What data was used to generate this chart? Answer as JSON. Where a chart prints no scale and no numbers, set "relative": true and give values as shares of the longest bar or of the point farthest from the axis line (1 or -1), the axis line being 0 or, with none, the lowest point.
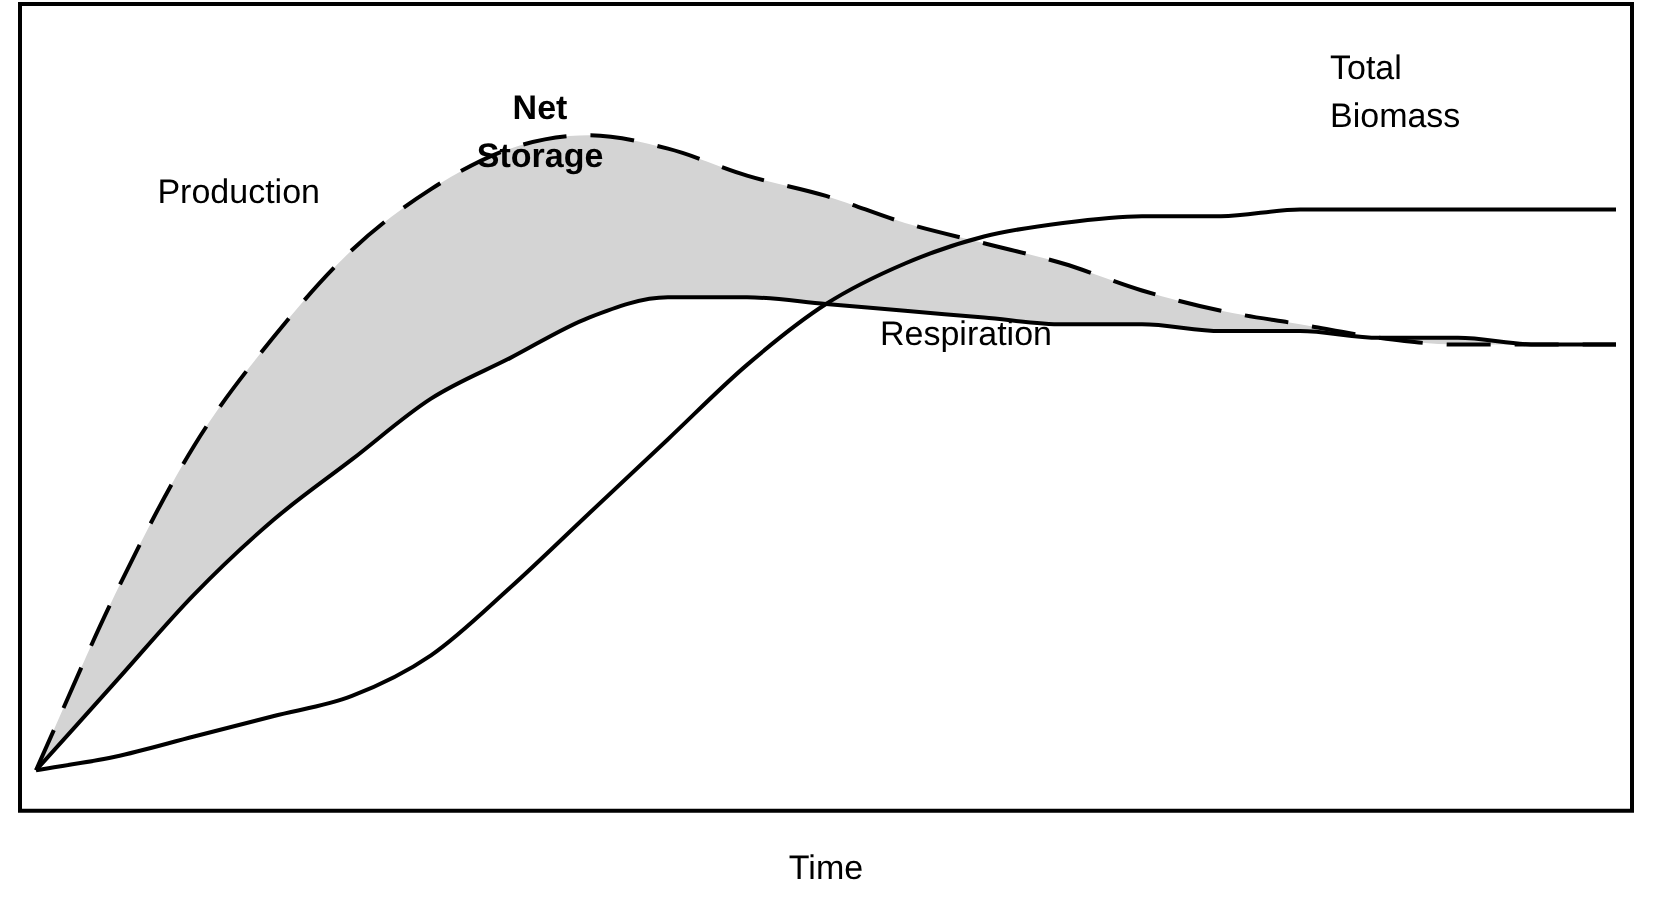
{
  "chart_data": {
    "type": "line",
    "relative": true,
    "xlabel": "Time",
    "legend": false,
    "grid": false,
    "marker": "none",
    "categories": [
      null,
      null,
      null,
      null,
      null,
      null,
      null,
      null,
      null,
      null,
      null,
      null,
      null,
      null,
      null,
      null,
      null,
      null,
      null,
      null,
      null
    ],
    "annotations": [
      "Net Storage"
    ],
    "series": [
      {
        "name": "Production",
        "type": "area",
        "color": "#000000",
        "line_style": "dashed",
        "values": [
          0.06,
          0.32,
          0.54,
          0.7,
          0.83,
          0.92,
          0.98,
          1,
          0.98,
          0.94,
          0.91,
          0.87,
          0.84,
          0.81,
          0.77,
          0.74,
          0.72,
          0.7,
          0.69,
          0.69,
          0.69
        ]
      },
      {
        "name": "Respiration",
        "color": "#000000",
        "values": [
          0.06,
          0.19,
          0.32,
          0.43,
          0.52,
          0.61,
          0.67,
          0.73,
          0.76,
          0.76,
          0.75,
          0.74,
          0.73,
          0.72,
          0.72,
          0.71,
          0.71,
          0.7,
          0.7,
          0.69,
          0.69
        ]
      },
      {
        "name": "Total Biomass",
        "color": "#000000",
        "values": [
          0.06,
          0.08,
          0.11,
          0.14,
          0.17,
          0.23,
          0.33,
          0.44,
          0.55,
          0.66,
          0.75,
          0.81,
          0.85,
          0.87,
          0.88,
          0.88,
          0.89,
          0.89,
          0.89,
          0.89,
          0.89
        ]
      }
    ]
  }
}
